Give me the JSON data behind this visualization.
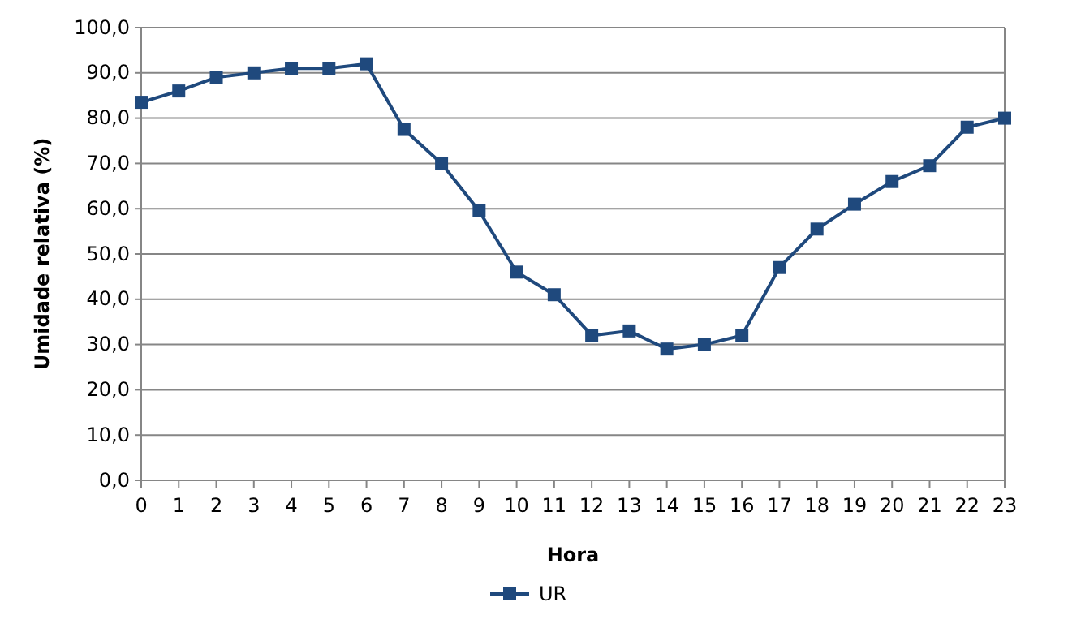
{
  "chart_data": {
    "type": "line",
    "xlabel": "Hora",
    "ylabel": "Umidade relativa (%)",
    "x": [
      0,
      1,
      2,
      3,
      4,
      5,
      6,
      7,
      8,
      9,
      10,
      11,
      12,
      13,
      14,
      15,
      16,
      17,
      18,
      19,
      20,
      21,
      22,
      23
    ],
    "series": [
      {
        "name": "UR",
        "color": "#1f497d",
        "values": [
          83.5,
          86,
          89,
          90,
          91,
          91,
          92,
          77.5,
          70,
          59.5,
          46,
          41,
          32,
          33,
          29,
          30,
          32,
          47,
          55.5,
          61,
          66,
          69.5,
          78,
          80
        ]
      }
    ],
    "xlim": [
      0,
      23
    ],
    "xticks": [
      0,
      1,
      2,
      3,
      4,
      5,
      6,
      7,
      8,
      9,
      10,
      11,
      12,
      13,
      14,
      15,
      16,
      17,
      18,
      19,
      20,
      21,
      22,
      23
    ],
    "ylim": [
      0,
      100
    ],
    "yticks": [
      {
        "value": 0,
        "label": "0,0"
      },
      {
        "value": 10,
        "label": "10,0"
      },
      {
        "value": 20,
        "label": "20,0"
      },
      {
        "value": 30,
        "label": "30,0"
      },
      {
        "value": 40,
        "label": "40,0"
      },
      {
        "value": 50,
        "label": "50,0"
      },
      {
        "value": 60,
        "label": "60,0"
      },
      {
        "value": 70,
        "label": "70,0"
      },
      {
        "value": 80,
        "label": "80,0"
      },
      {
        "value": 90,
        "label": "90,0"
      },
      {
        "value": 100,
        "label": "100,0"
      }
    ],
    "grid": "y",
    "legend": "bottom",
    "marker": "square",
    "line_style": "solid"
  }
}
